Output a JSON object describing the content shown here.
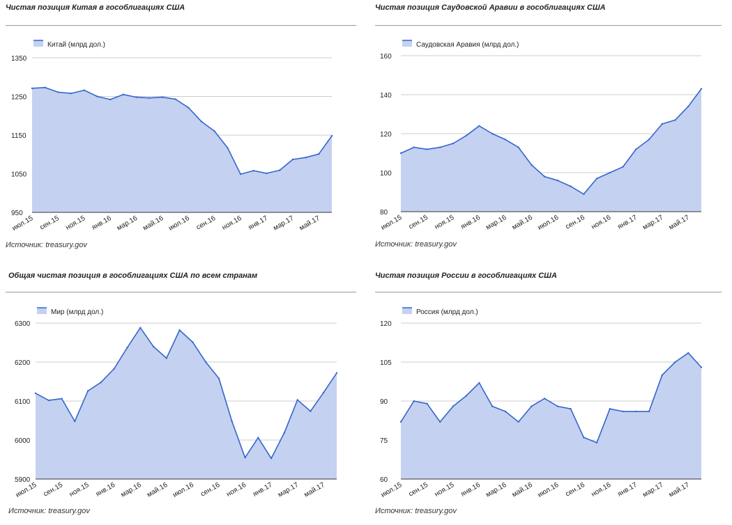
{
  "chart_data": [
    {
      "type": "area",
      "title": "Чистая позиция Китая в гособлигациях США",
      "series": [
        {
          "name": "Китай (млрд дол.)",
          "values": [
            1271,
            1273,
            1261,
            1258,
            1266,
            1250,
            1242,
            1255,
            1248,
            1246,
            1248,
            1243,
            1221,
            1185,
            1160,
            1117,
            1049,
            1058,
            1051,
            1059,
            1087,
            1092,
            1101,
            1148
          ]
        }
      ],
      "ylim": [
        950,
        1350
      ],
      "yticks": [
        "1350",
        "1250",
        "1150",
        "1050",
        "950"
      ],
      "xticks": [
        "июл.15",
        "сен.15",
        "ноя.15",
        "янв.16",
        "мар.16",
        "май.16",
        "июл.16",
        "сен.16",
        "ноя.16",
        "янв.17",
        "мар.17",
        "май.17"
      ],
      "source": "Источник: treasury.gov",
      "color": "#3366cc",
      "fill": "#c5d1f0"
    },
    {
      "type": "area",
      "title": "Чистая позиция Саудовской Аравии в гособлигациях США",
      "series": [
        {
          "name": "Саудовская Аравия (млрд дол.)",
          "values": [
            110,
            113,
            112,
            113,
            115,
            119,
            124,
            120,
            117,
            113,
            104,
            98,
            96,
            93,
            89,
            97,
            100,
            103,
            112,
            117,
            125,
            127,
            134,
            143
          ]
        }
      ],
      "ylim": [
        80,
        160
      ],
      "yticks": [
        "160",
        "140",
        "120",
        "100",
        "80"
      ],
      "xticks": [
        "июл.15",
        "сен.15",
        "ноя.15",
        "янв.16",
        "мар.16",
        "май.16",
        "июл.16",
        "сен.16",
        "ноя.16",
        "янв.17",
        "мар.17",
        "май.17"
      ],
      "source": "Источник: treasury.gov",
      "color": "#3366cc",
      "fill": "#c5d1f0"
    },
    {
      "type": "area",
      "title": "Общая чистая позиция в гособлигациях США по всем странам",
      "series": [
        {
          "name": "Мир (млрд дол.)",
          "values": [
            6120,
            6102,
            6106,
            6048,
            6126,
            6148,
            6183,
            6237,
            6288,
            6240,
            6210,
            6282,
            6251,
            6200,
            6158,
            6048,
            5955,
            6006,
            5953,
            6019,
            6103,
            6074,
            6122,
            6172
          ]
        }
      ],
      "ylim": [
        5900,
        6300
      ],
      "yticks": [
        "6300",
        "6200",
        "6100",
        "6000",
        "5900"
      ],
      "xticks": [
        "июл.15",
        "сен.15",
        "ноя.15",
        "янв.16",
        "мар.16",
        "май.16",
        "июл.16",
        "сен.16",
        "ноя.16",
        "янв.17",
        "мар.17",
        "май.17"
      ],
      "source": "Источник: treasury.gov",
      "color": "#3366cc",
      "fill": "#c5d1f0"
    },
    {
      "type": "area",
      "title": "Чистая позиция России в гособлигациях США",
      "series": [
        {
          "name": "Россия (млрд дол.)",
          "values": [
            82,
            90,
            89,
            82,
            88,
            92,
            97,
            88,
            86,
            82,
            88,
            91,
            88,
            87,
            76,
            74,
            87,
            86,
            86,
            86,
            100,
            105,
            108.5,
            103
          ]
        }
      ],
      "ylim": [
        60,
        120
      ],
      "yticks": [
        "120",
        "105",
        "90",
        "75",
        "60"
      ],
      "xticks": [
        "июл.15",
        "сен.15",
        "ноя.15",
        "янв.16",
        "мар.16",
        "май.16",
        "июл.16",
        "сен.16",
        "ноя.16",
        "янв.17",
        "мар.17",
        "май.17"
      ],
      "source": "Источник: treasury.gov",
      "color": "#3366cc",
      "fill": "#c5d1f0"
    }
  ]
}
